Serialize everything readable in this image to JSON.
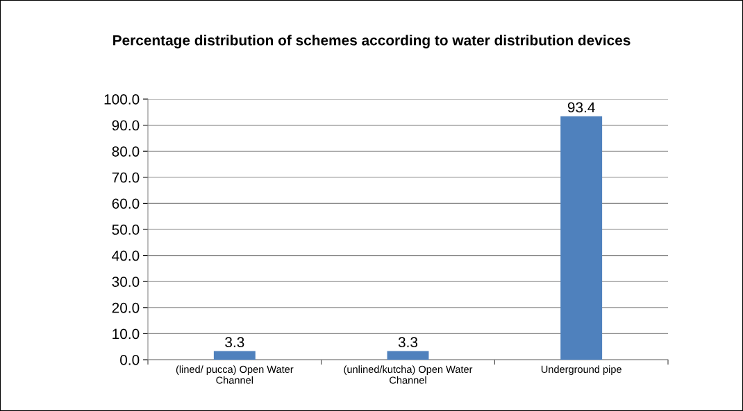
{
  "chart_data": {
    "type": "bar",
    "title": "Percentage distribution of schemes according to water distribution devices",
    "categories": [
      "(lined/ pucca) Open Water Channel",
      "(unlined/kutcha) Open Water Channel",
      "Underground pipe"
    ],
    "values": [
      3.3,
      3.3,
      93.4
    ],
    "color": "#4f81bd",
    "ylim": [
      0,
      100
    ],
    "yticks": [
      {
        "value": 0,
        "label": "0.0"
      },
      {
        "value": 10,
        "label": "10.0"
      },
      {
        "value": 20,
        "label": "20.0"
      },
      {
        "value": 30,
        "label": "30.0"
      },
      {
        "value": 40,
        "label": "40.0"
      },
      {
        "value": 50,
        "label": "50.0"
      },
      {
        "value": 60,
        "label": "60.0"
      },
      {
        "value": 70,
        "label": "70.0"
      },
      {
        "value": 80,
        "label": "80.0"
      },
      {
        "value": 90,
        "label": "90.0"
      },
      {
        "value": 100,
        "label": "100.0"
      }
    ],
    "grid": "y",
    "data_labels": true
  }
}
